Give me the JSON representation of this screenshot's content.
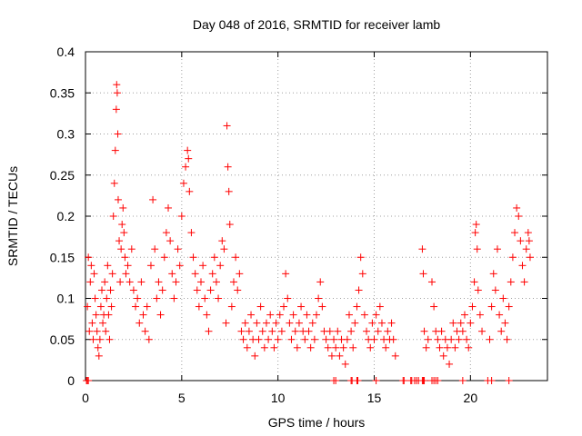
{
  "chart_data": {
    "type": "scatter",
    "title": "Day 048 of 2016, SRMTID for receiver lamb",
    "xlabel": "GPS time / hours",
    "ylabel": "SRMTID / TECUs",
    "xlim": [
      0,
      24
    ],
    "ylim": [
      0,
      0.4
    ],
    "x_ticks": [
      0,
      5,
      10,
      15,
      20
    ],
    "x_tick_labels": [
      "0",
      "5",
      "10",
      "15",
      "20"
    ],
    "y_ticks": [
      0,
      0.05,
      0.1,
      0.15,
      0.2,
      0.25,
      0.3,
      0.35,
      0.4
    ],
    "y_tick_labels": [
      "0",
      "0.05",
      "0.1",
      "0.15",
      "0.2",
      "0.25",
      "0.3",
      "0.35",
      "0.4"
    ],
    "grid": true,
    "marker": "+",
    "color": "#ff0000",
    "series": [
      {
        "name": "SRMTID",
        "points": [
          [
            0.1,
            0.09
          ],
          [
            0.15,
            0.15
          ],
          [
            0.2,
            0.06
          ],
          [
            0.25,
            0.12
          ],
          [
            0.3,
            0.14
          ],
          [
            0.35,
            0.07
          ],
          [
            0.4,
            0.05
          ],
          [
            0.45,
            0.13
          ],
          [
            0.5,
            0.1
          ],
          [
            0.55,
            0.08
          ],
          [
            0.6,
            0.06
          ],
          [
            0.65,
            0.04
          ],
          [
            0.7,
            0.03
          ],
          [
            0.75,
            0.05
          ],
          [
            0.8,
            0.09
          ],
          [
            0.85,
            0.11
          ],
          [
            0.9,
            0.07
          ],
          [
            0.95,
            0.08
          ],
          [
            1.0,
            0.12
          ],
          [
            1.05,
            0.06
          ],
          [
            1.1,
            0.1
          ],
          [
            1.15,
            0.14
          ],
          [
            1.2,
            0.08
          ],
          [
            1.25,
            0.05
          ],
          [
            1.3,
            0.11
          ],
          [
            1.35,
            0.09
          ],
          [
            1.4,
            0.13
          ],
          [
            1.45,
            0.2
          ],
          [
            1.5,
            0.24
          ],
          [
            1.55,
            0.28
          ],
          [
            1.6,
            0.33
          ],
          [
            1.62,
            0.36
          ],
          [
            1.65,
            0.35
          ],
          [
            1.68,
            0.3
          ],
          [
            1.7,
            0.22
          ],
          [
            1.75,
            0.17
          ],
          [
            1.8,
            0.12
          ],
          [
            1.85,
            0.16
          ],
          [
            1.9,
            0.19
          ],
          [
            1.95,
            0.21
          ],
          [
            2.0,
            0.18
          ],
          [
            2.05,
            0.15
          ],
          [
            2.1,
            0.13
          ],
          [
            2.2,
            0.14
          ],
          [
            2.3,
            0.12
          ],
          [
            2.4,
            0.16
          ],
          [
            2.5,
            0.11
          ],
          [
            2.6,
            0.09
          ],
          [
            2.7,
            0.1
          ],
          [
            2.8,
            0.07
          ],
          [
            2.9,
            0.12
          ],
          [
            3.0,
            0.08
          ],
          [
            3.1,
            0.06
          ],
          [
            3.2,
            0.09
          ],
          [
            3.3,
            0.05
          ],
          [
            3.4,
            0.14
          ],
          [
            3.5,
            0.22
          ],
          [
            3.6,
            0.16
          ],
          [
            3.7,
            0.1
          ],
          [
            3.8,
            0.12
          ],
          [
            3.9,
            0.08
          ],
          [
            4.0,
            0.11
          ],
          [
            4.1,
            0.15
          ],
          [
            4.2,
            0.18
          ],
          [
            4.3,
            0.21
          ],
          [
            4.4,
            0.17
          ],
          [
            4.5,
            0.13
          ],
          [
            4.6,
            0.1
          ],
          [
            4.7,
            0.12
          ],
          [
            4.8,
            0.16
          ],
          [
            4.9,
            0.14
          ],
          [
            5.0,
            0.2
          ],
          [
            5.1,
            0.24
          ],
          [
            5.2,
            0.26
          ],
          [
            5.3,
            0.28
          ],
          [
            5.35,
            0.27
          ],
          [
            5.4,
            0.23
          ],
          [
            5.5,
            0.18
          ],
          [
            5.6,
            0.15
          ],
          [
            5.7,
            0.13
          ],
          [
            5.8,
            0.11
          ],
          [
            5.9,
            0.09
          ],
          [
            6.0,
            0.12
          ],
          [
            6.1,
            0.14
          ],
          [
            6.2,
            0.1
          ],
          [
            6.3,
            0.08
          ],
          [
            6.4,
            0.06
          ],
          [
            6.5,
            0.11
          ],
          [
            6.6,
            0.13
          ],
          [
            6.7,
            0.15
          ],
          [
            6.8,
            0.12
          ],
          [
            6.9,
            0.1
          ],
          [
            7.0,
            0.14
          ],
          [
            7.1,
            0.17
          ],
          [
            7.2,
            0.16
          ],
          [
            7.3,
            0.07
          ],
          [
            7.35,
            0.31
          ],
          [
            7.4,
            0.26
          ],
          [
            7.45,
            0.23
          ],
          [
            7.5,
            0.19
          ],
          [
            7.6,
            0.09
          ],
          [
            7.7,
            0.12
          ],
          [
            7.8,
            0.15
          ],
          [
            7.9,
            0.11
          ],
          [
            8.0,
            0.13
          ],
          [
            8.1,
            0.06
          ],
          [
            8.2,
            0.05
          ],
          [
            8.3,
            0.07
          ],
          [
            8.4,
            0.04
          ],
          [
            8.5,
            0.06
          ],
          [
            8.6,
            0.08
          ],
          [
            8.7,
            0.05
          ],
          [
            8.8,
            0.03
          ],
          [
            8.9,
            0.07
          ],
          [
            9.0,
            0.05
          ],
          [
            9.1,
            0.09
          ],
          [
            9.2,
            0.06
          ],
          [
            9.3,
            0.04
          ],
          [
            9.4,
            0.07
          ],
          [
            9.5,
            0.05
          ],
          [
            9.6,
            0.08
          ],
          [
            9.7,
            0.06
          ],
          [
            9.8,
            0.04
          ],
          [
            9.9,
            0.07
          ],
          [
            10.0,
            0.05
          ],
          [
            10.1,
            0.08
          ],
          [
            10.2,
            0.06
          ],
          [
            10.3,
            0.09
          ],
          [
            10.4,
            0.13
          ],
          [
            10.5,
            0.1
          ],
          [
            10.6,
            0.07
          ],
          [
            10.7,
            0.05
          ],
          [
            10.8,
            0.08
          ],
          [
            10.9,
            0.06
          ],
          [
            11.0,
            0.04
          ],
          [
            11.1,
            0.07
          ],
          [
            11.2,
            0.09
          ],
          [
            11.3,
            0.06
          ],
          [
            11.4,
            0.05
          ],
          [
            11.5,
            0.08
          ],
          [
            11.6,
            0.06
          ],
          [
            11.7,
            0.04
          ],
          [
            11.8,
            0.07
          ],
          [
            11.9,
            0.05
          ],
          [
            12.0,
            0.08
          ],
          [
            12.1,
            0.1
          ],
          [
            12.2,
            0.12
          ],
          [
            12.3,
            0.09
          ],
          [
            12.4,
            0.06
          ],
          [
            12.5,
            0.05
          ],
          [
            12.6,
            0.04
          ],
          [
            12.7,
            0.06
          ],
          [
            12.8,
            0.03
          ],
          [
            12.9,
            0.05
          ],
          [
            13.0,
            0.04
          ],
          [
            13.1,
            0.06
          ],
          [
            13.2,
            0.03
          ],
          [
            13.3,
            0.05
          ],
          [
            13.4,
            0.04
          ],
          [
            13.5,
            0.02
          ],
          [
            13.6,
            0.05
          ],
          [
            13.7,
            0.08
          ],
          [
            13.8,
            0.06
          ],
          [
            13.9,
            0.04
          ],
          [
            14.0,
            0.07
          ],
          [
            14.1,
            0.09
          ],
          [
            14.2,
            0.11
          ],
          [
            14.3,
            0.15
          ],
          [
            14.4,
            0.13
          ],
          [
            14.5,
            0.08
          ],
          [
            14.6,
            0.06
          ],
          [
            14.7,
            0.05
          ],
          [
            14.8,
            0.04
          ],
          [
            14.9,
            0.07
          ],
          [
            15.0,
            0.05
          ],
          [
            15.1,
            0.08
          ],
          [
            15.2,
            0.06
          ],
          [
            15.3,
            0.09
          ],
          [
            15.4,
            0.07
          ],
          [
            15.5,
            0.05
          ],
          [
            15.6,
            0.04
          ],
          [
            15.7,
            0.06
          ],
          [
            15.8,
            0.05
          ],
          [
            15.9,
            0.07
          ],
          [
            16.0,
            0.05
          ],
          [
            16.1,
            0.03
          ],
          [
            17.5,
            0.16
          ],
          [
            17.55,
            0.13
          ],
          [
            17.6,
            0.06
          ],
          [
            17.7,
            0.04
          ],
          [
            17.8,
            0.05
          ],
          [
            18.0,
            0.12
          ],
          [
            18.1,
            0.09
          ],
          [
            18.2,
            0.06
          ],
          [
            18.3,
            0.05
          ],
          [
            18.4,
            0.04
          ],
          [
            18.5,
            0.06
          ],
          [
            18.6,
            0.03
          ],
          [
            18.7,
            0.05
          ],
          [
            18.8,
            0.04
          ],
          [
            18.9,
            0.02
          ],
          [
            19.0,
            0.05
          ],
          [
            19.1,
            0.07
          ],
          [
            19.2,
            0.04
          ],
          [
            19.3,
            0.06
          ],
          [
            19.4,
            0.05
          ],
          [
            19.5,
            0.07
          ],
          [
            19.6,
            0.06
          ],
          [
            19.7,
            0.08
          ],
          [
            19.8,
            0.05
          ],
          [
            19.9,
            0.04
          ],
          [
            20.0,
            0.07
          ],
          [
            20.1,
            0.09
          ],
          [
            20.2,
            0.12
          ],
          [
            20.25,
            0.18
          ],
          [
            20.3,
            0.19
          ],
          [
            20.35,
            0.16
          ],
          [
            20.4,
            0.11
          ],
          [
            20.5,
            0.08
          ],
          [
            20.6,
            0.06
          ],
          [
            21.0,
            0.05
          ],
          [
            21.1,
            0.09
          ],
          [
            21.2,
            0.13
          ],
          [
            21.3,
            0.11
          ],
          [
            21.4,
            0.16
          ],
          [
            21.5,
            0.08
          ],
          [
            21.6,
            0.06
          ],
          [
            21.7,
            0.1
          ],
          [
            21.8,
            0.07
          ],
          [
            21.9,
            0.05
          ],
          [
            22.0,
            0.09
          ],
          [
            22.1,
            0.12
          ],
          [
            22.2,
            0.15
          ],
          [
            22.3,
            0.18
          ],
          [
            22.4,
            0.21
          ],
          [
            22.5,
            0.2
          ],
          [
            22.6,
            0.17
          ],
          [
            22.7,
            0.14
          ],
          [
            22.8,
            0.12
          ],
          [
            22.9,
            0.16
          ],
          [
            23.0,
            0.18
          ],
          [
            23.05,
            0.17
          ],
          [
            23.1,
            0.15
          ],
          [
            0.05,
            0.0
          ],
          [
            0.1,
            0.0
          ],
          [
            0.15,
            0.0
          ],
          [
            12.9,
            0.0
          ],
          [
            13.0,
            0.0
          ],
          [
            13.8,
            0.0
          ],
          [
            13.85,
            0.0
          ],
          [
            14.1,
            0.0
          ],
          [
            14.15,
            0.0
          ],
          [
            15.1,
            0.0
          ],
          [
            16.5,
            0.0
          ],
          [
            16.55,
            0.0
          ],
          [
            16.9,
            0.0
          ],
          [
            16.95,
            0.0
          ],
          [
            17.1,
            0.0
          ],
          [
            17.2,
            0.0
          ],
          [
            17.3,
            0.0
          ],
          [
            17.5,
            0.0
          ],
          [
            17.55,
            0.0
          ],
          [
            17.6,
            0.0
          ],
          [
            18.0,
            0.0
          ],
          [
            18.1,
            0.0
          ],
          [
            18.2,
            0.0
          ],
          [
            18.3,
            0.0
          ],
          [
            19.6,
            0.0
          ],
          [
            20.9,
            0.0
          ],
          [
            21.1,
            0.0
          ],
          [
            22.0,
            0.0
          ]
        ]
      }
    ]
  }
}
